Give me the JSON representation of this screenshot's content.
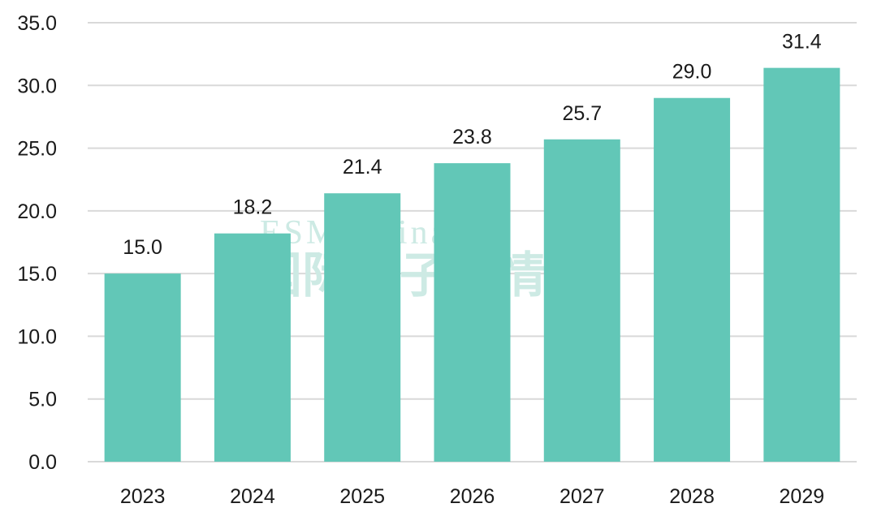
{
  "chart_data": {
    "type": "bar",
    "categories": [
      "2023",
      "2024",
      "2025",
      "2026",
      "2027",
      "2028",
      "2029"
    ],
    "values": [
      15.0,
      18.2,
      21.4,
      23.8,
      25.7,
      29.0,
      31.4
    ],
    "data_labels": [
      "15.0",
      "18.2",
      "21.4",
      "23.8",
      "25.7",
      "29.0",
      "31.4"
    ],
    "yticks": [
      0,
      5,
      10,
      15,
      20,
      25,
      30,
      35
    ],
    "ytick_labels": [
      "0.0",
      "5.0",
      "10.0",
      "15.0",
      "20.0",
      "25.0",
      "30.0",
      "35.0"
    ],
    "ylim": [
      0,
      35
    ],
    "title": "",
    "xlabel": "",
    "ylabel": "",
    "grid": true,
    "legend": "none"
  },
  "watermark": {
    "line1": "ESM China",
    "line2": "国际电子商情"
  },
  "colors": {
    "bar": "#62c7b7",
    "grid": "#d9d9d9",
    "text": "#1a1a1a",
    "watermark": "#cdeae4"
  }
}
